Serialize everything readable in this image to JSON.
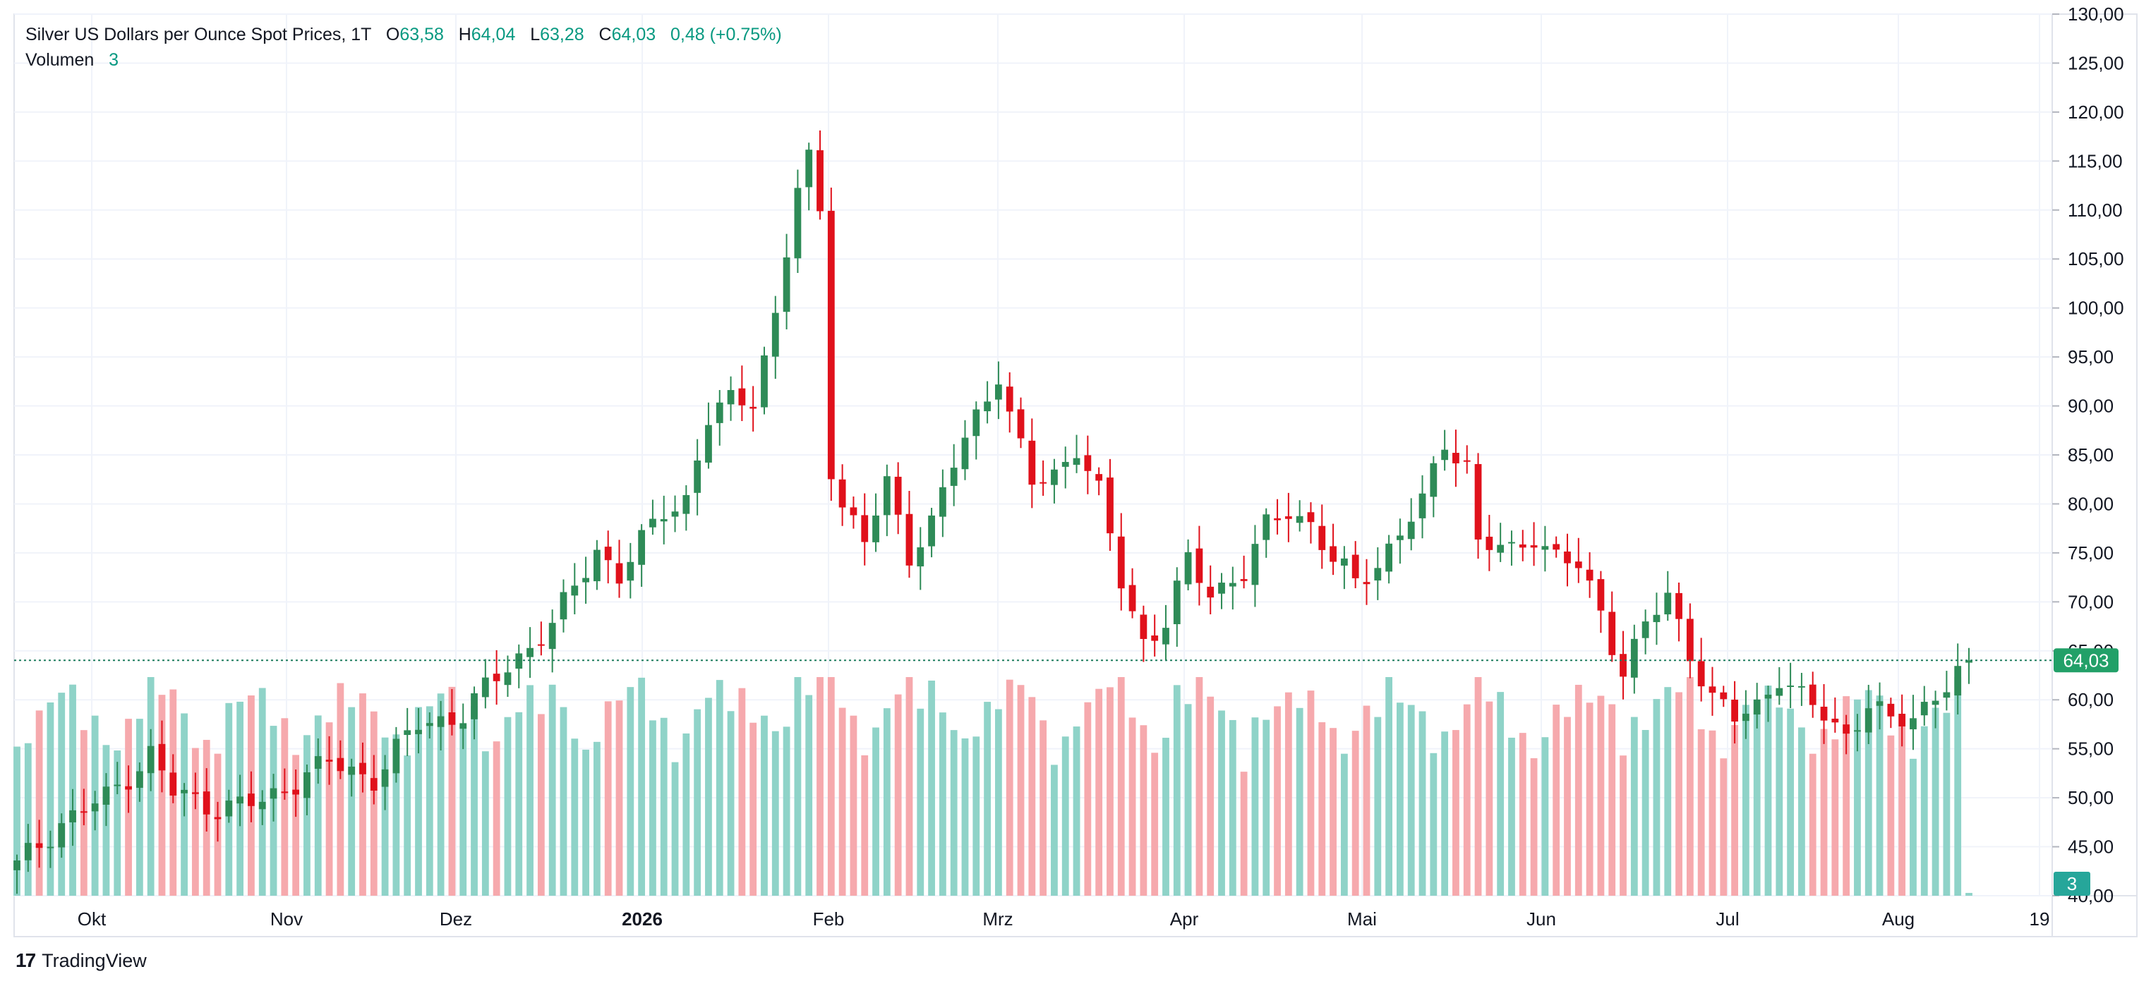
{
  "header": {
    "title": "Silver US Dollars per Ounce Spot Prices, 1T",
    "o_label": "O",
    "o_value": "63,58",
    "h_label": "H",
    "h_value": "64,04",
    "l_label": "L",
    "l_value": "63,28",
    "c_label": "C",
    "c_value": "64,03",
    "change": "0,48 (+0.75%)",
    "volume_label": "Volumen",
    "volume_value": "3"
  },
  "brand": {
    "logo_text": "17",
    "name": "TradingView"
  },
  "colors": {
    "up": "#26a69a",
    "up_candle": "#2e8b57",
    "down": "#e0111b",
    "vol_up": "#8fd3c8",
    "vol_down": "#f6a9ad",
    "price_line": "#1e7d5e",
    "grid": "#f0f3fa",
    "badge": "#22a068"
  },
  "chart_data": {
    "type": "candlestick",
    "y_axis": {
      "min": 40,
      "max": 130,
      "ticks": [
        "130,00",
        "125,00",
        "120,00",
        "115,00",
        "110,00",
        "105,00",
        "100,00",
        "95,00",
        "90,00",
        "85,00",
        "80,00",
        "75,00",
        "70,00",
        "65,00",
        "60,00",
        "55,00",
        "50,00",
        "45,00",
        "40,00"
      ]
    },
    "x_axis": {
      "labels": [
        "Okt",
        "Nov",
        "Dez",
        "2026",
        "Feb",
        "Mrz",
        "Apr",
        "Mai",
        "Jun",
        "Jul",
        "Aug",
        "19"
      ]
    },
    "last_price": "64,03",
    "last_volume": "3",
    "close_path": [
      [
        0,
        43.0
      ],
      [
        4,
        47.5
      ],
      [
        8,
        50.0
      ],
      [
        12,
        54.5
      ],
      [
        14,
        50.5
      ],
      [
        18,
        49.0
      ],
      [
        22,
        49.5
      ],
      [
        26,
        52.5
      ],
      [
        28,
        53.5
      ],
      [
        32,
        52.0
      ],
      [
        36,
        57.5
      ],
      [
        40,
        58.5
      ],
      [
        44,
        63.5
      ],
      [
        48,
        67.5
      ],
      [
        52,
        75.5
      ],
      [
        54,
        72.5
      ],
      [
        58,
        79.5
      ],
      [
        60,
        80.5
      ],
      [
        62,
        88.5
      ],
      [
        64,
        90.5
      ],
      [
        66,
        91.0
      ],
      [
        68,
        99.0
      ],
      [
        70,
        112.0
      ],
      [
        71,
        115.0
      ],
      [
        72,
        110.0
      ],
      [
        73,
        84.0
      ],
      [
        74,
        80.0
      ],
      [
        76,
        76.0
      ],
      [
        78,
        82.0
      ],
      [
        80,
        75.0
      ],
      [
        82,
        78.0
      ],
      [
        84,
        84.0
      ],
      [
        86,
        89.0
      ],
      [
        88,
        93.5
      ],
      [
        89,
        89.0
      ],
      [
        91,
        82.0
      ],
      [
        93,
        83.0
      ],
      [
        95,
        86.0
      ],
      [
        97,
        81.0
      ],
      [
        99,
        72.0
      ],
      [
        101,
        66.0
      ],
      [
        103,
        68.0
      ],
      [
        105,
        74.0
      ],
      [
        107,
        71.0
      ],
      [
        110,
        73.0
      ],
      [
        112,
        77.5
      ],
      [
        114,
        79.5
      ],
      [
        116,
        78.0
      ],
      [
        118,
        74.0
      ],
      [
        120,
        72.0
      ],
      [
        122,
        74.0
      ],
      [
        124,
        77.0
      ],
      [
        126,
        80.0
      ],
      [
        128,
        86.5
      ],
      [
        130,
        84.0
      ],
      [
        131,
        76.0
      ],
      [
        134,
        75.0
      ],
      [
        136,
        77.0
      ],
      [
        138,
        74.5
      ],
      [
        140,
        73.5
      ],
      [
        142,
        69.0
      ],
      [
        144,
        63.0
      ],
      [
        146,
        67.5
      ],
      [
        148,
        70.5
      ],
      [
        150,
        65.0
      ],
      [
        152,
        60.0
      ],
      [
        154,
        58.0
      ],
      [
        156,
        59.5
      ],
      [
        158,
        62.5
      ],
      [
        160,
        60.0
      ],
      [
        162,
        58.5
      ],
      [
        164,
        56.5
      ],
      [
        166,
        59.5
      ],
      [
        168,
        57.5
      ],
      [
        170,
        58.5
      ],
      [
        172,
        60.5
      ],
      [
        174,
        62.5
      ],
      [
        175,
        64.03
      ]
    ],
    "volume_range": [
      0,
      30
    ]
  }
}
